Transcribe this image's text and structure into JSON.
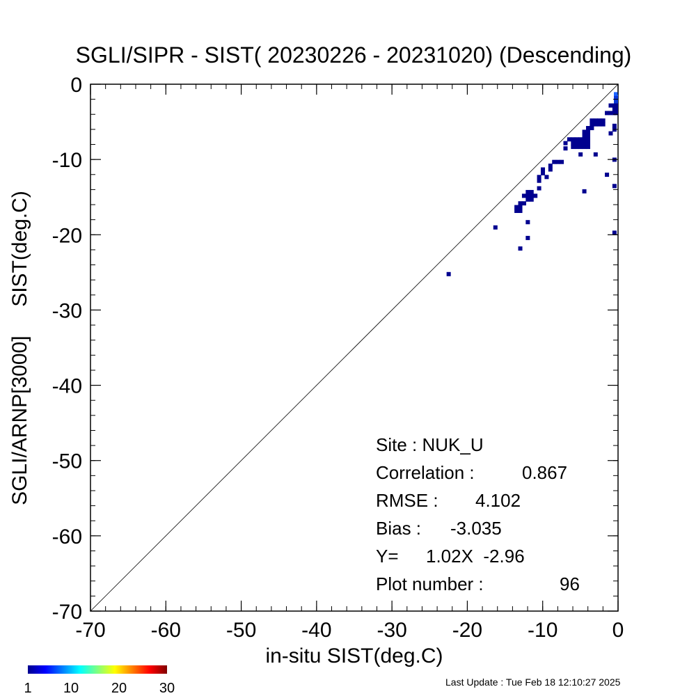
{
  "chart_data": {
    "type": "heatmap",
    "title": "SGLI/SIPR - SIST( 20230226 - 20231020) (Descending)",
    "xlabel": "in-situ SIST(deg.C)",
    "ylabel": "SGLI/ARNP[3000]     SIST(deg.C)",
    "xlim": [
      -70,
      0
    ],
    "ylim": [
      -70,
      0
    ],
    "xticks": [
      -70,
      -60,
      -50,
      -40,
      -30,
      -20,
      -10,
      0
    ],
    "yticks": [
      0,
      -10,
      -20,
      -30,
      -40,
      -50,
      -60,
      -70
    ],
    "grid": false,
    "reference_line": "y = x",
    "stats": {
      "site_label": "Site : NUK_U",
      "correlation_label": "Correlation :",
      "correlation_value": "0.867",
      "rmse_label": "RMSE :",
      "rmse_value": "4.102",
      "bias_label": "Bias :",
      "bias_value": "-3.035",
      "regression_label": "Y=",
      "regression_value": "1.02X  -2.96",
      "plot_number_label": "Plot number :",
      "plot_number_value": "96"
    },
    "colorbar": {
      "min": 1,
      "max": 30,
      "ticks": [
        "1",
        "10",
        "20",
        "30"
      ]
    },
    "cells": [
      [
        -22.5,
        -25.2
      ],
      [
        -16.3,
        -19.0
      ],
      [
        -13.0,
        -21.8
      ],
      [
        -12.0,
        -20.4
      ],
      [
        -12.0,
        -18.3
      ],
      [
        -13.5,
        -16.8
      ],
      [
        -13.5,
        -16.3
      ],
      [
        -13.0,
        -16.8
      ],
      [
        -13.0,
        -16.3
      ],
      [
        -13.0,
        -15.8
      ],
      [
        -12.5,
        -15.8
      ],
      [
        -12.5,
        -14.8
      ],
      [
        -12.0,
        -15.3
      ],
      [
        -12.0,
        -14.8
      ],
      [
        -12.0,
        -14.3
      ],
      [
        -11.5,
        -15.3
      ],
      [
        -11.5,
        -14.8
      ],
      [
        -11.5,
        -14.3
      ],
      [
        -11.0,
        -14.8
      ],
      [
        -10.5,
        -13.8
      ],
      [
        -10.5,
        -12.8
      ],
      [
        -10.5,
        -12.3
      ],
      [
        -10.0,
        -11.8
      ],
      [
        -10.0,
        -11.3
      ],
      [
        -9.5,
        -12.3
      ],
      [
        -9.0,
        -11.3
      ],
      [
        -9.0,
        -10.8
      ],
      [
        -8.5,
        -10.3
      ],
      [
        -8.0,
        -10.3
      ],
      [
        -7.5,
        -10.3
      ],
      [
        -7.0,
        -8.5
      ],
      [
        -6.5,
        -7.3
      ],
      [
        -6.0,
        -7.3
      ],
      [
        -6.0,
        -7.8
      ],
      [
        -5.5,
        -7.3
      ],
      [
        -5.5,
        -7.8
      ],
      [
        -5.5,
        -8.3
      ],
      [
        -5.0,
        -7.3
      ],
      [
        -5.0,
        -7.8
      ],
      [
        -5.0,
        -8.3
      ],
      [
        -5.0,
        -9.3
      ],
      [
        -4.5,
        -6.3
      ],
      [
        -4.5,
        -6.8
      ],
      [
        -4.5,
        -7.3
      ],
      [
        -4.5,
        -7.8
      ],
      [
        -4.5,
        -8.3
      ],
      [
        -4.0,
        -5.8
      ],
      [
        -4.0,
        -6.3
      ],
      [
        -4.0,
        -6.8
      ],
      [
        -4.0,
        -7.3
      ],
      [
        -4.0,
        -7.8
      ],
      [
        -4.0,
        -8.3
      ],
      [
        -3.5,
        -5.3
      ],
      [
        -3.5,
        -5.8
      ],
      [
        -3.0,
        -4.8
      ],
      [
        -3.0,
        -5.3
      ],
      [
        -3.0,
        -9.3
      ],
      [
        -2.5,
        -4.8
      ],
      [
        -2.5,
        -5.3
      ],
      [
        -2.0,
        -4.8
      ],
      [
        -2.0,
        -5.3
      ],
      [
        -1.5,
        -3.8
      ],
      [
        -1.5,
        -12.0
      ],
      [
        -1.0,
        -3.8
      ],
      [
        -1.0,
        -2.8
      ],
      [
        -1.0,
        -6.5
      ],
      [
        -0.5,
        -3.3
      ],
      [
        -0.5,
        -2.8
      ],
      [
        -0.5,
        -3.8
      ],
      [
        -0.5,
        -6.0
      ],
      [
        -0.5,
        -5.5
      ],
      [
        -0.5,
        -10.0
      ],
      [
        -0.5,
        -13.5
      ],
      [
        -0.5,
        -19.7
      ],
      [
        0.0,
        -1.3
      ],
      [
        0.0,
        -1.8
      ],
      [
        0.0,
        -2.3
      ],
      [
        0.0,
        -2.8
      ],
      [
        0.0,
        -3.3
      ],
      [
        0.0,
        -3.8
      ],
      [
        -4.5,
        -14.2
      ],
      [
        -3.5,
        -4.8
      ],
      [
        -6.0,
        -8.3
      ],
      [
        -7.0,
        -7.8
      ]
    ],
    "cell_colors": {
      "[0.0, -1.3]": "#1c63ff",
      "[0.0, -1.8]": "#0a36d8",
      "[0.0, -2.3]": "#0a36d8"
    },
    "cell_default_color": "#00008f"
  },
  "footer": {
    "last_update": "Last Update : Tue Feb 18 12:10:27 2025"
  }
}
